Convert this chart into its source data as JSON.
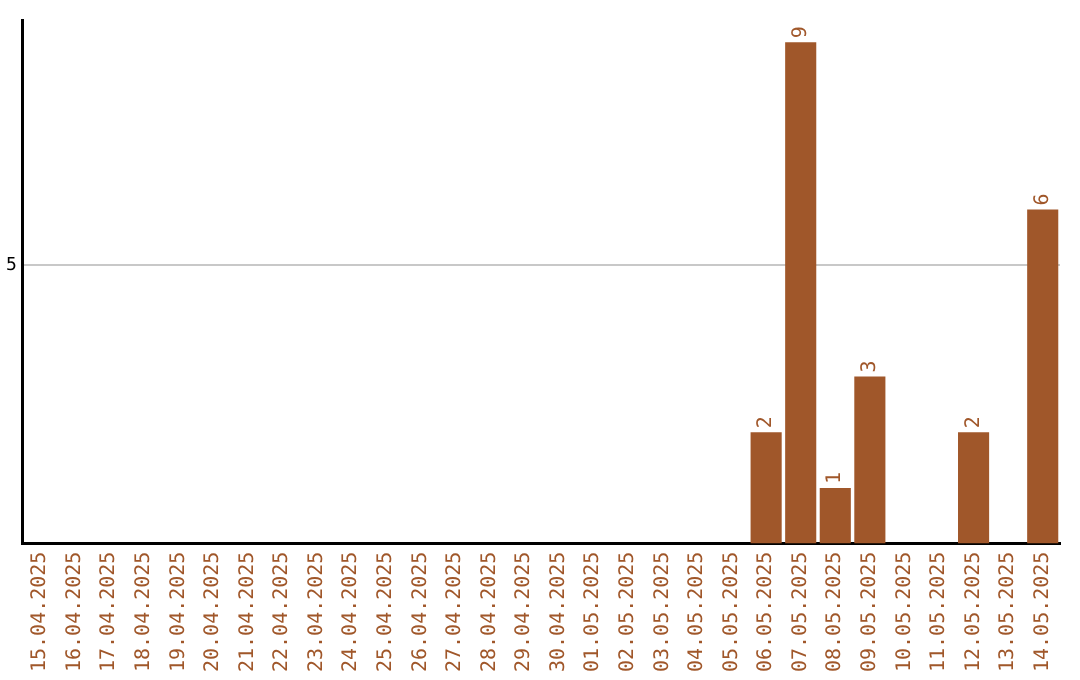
{
  "chart_data": {
    "type": "bar",
    "categories": [
      "15.04.2025",
      "16.04.2025",
      "17.04.2025",
      "18.04.2025",
      "19.04.2025",
      "20.04.2025",
      "21.04.2025",
      "22.04.2025",
      "23.04.2025",
      "24.04.2025",
      "25.04.2025",
      "26.04.2025",
      "27.04.2025",
      "28.04.2025",
      "29.04.2025",
      "30.04.2025",
      "01.05.2025",
      "02.05.2025",
      "03.05.2025",
      "04.05.2025",
      "05.05.2025",
      "06.05.2025",
      "07.05.2025",
      "08.05.2025",
      "09.05.2025",
      "10.05.2025",
      "11.05.2025",
      "12.05.2025",
      "13.05.2025",
      "14.05.2025"
    ],
    "values": [
      null,
      null,
      null,
      null,
      null,
      null,
      null,
      null,
      null,
      null,
      null,
      null,
      null,
      null,
      null,
      null,
      null,
      null,
      null,
      null,
      null,
      2,
      9,
      1,
      3,
      null,
      null,
      2,
      null,
      6
    ],
    "color": "#a0572a",
    "ylim": [
      0,
      9.4
    ],
    "yticks": [
      5
    ],
    "grid": "y",
    "data_labels": true,
    "legend": false
  }
}
